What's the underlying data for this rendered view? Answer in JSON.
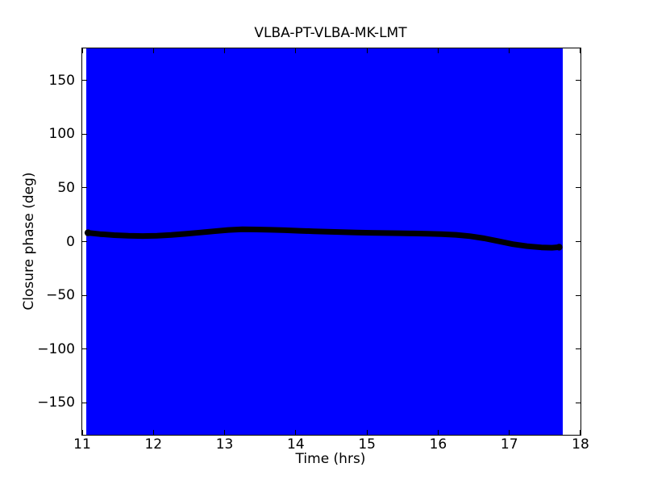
{
  "window": {
    "background_color": "#ffffff"
  },
  "chart_data": {
    "type": "line",
    "title": "VLBA-PT-VLBA-MK-LMT",
    "xlabel": "Time (hrs)",
    "ylabel": "Closure phase (deg)",
    "xlim": [
      11,
      18
    ],
    "ylim": [
      -180,
      180
    ],
    "xticks": [
      11,
      12,
      13,
      14,
      15,
      16,
      17,
      18
    ],
    "yticks": [
      -150,
      -100,
      -50,
      0,
      50,
      100,
      150
    ],
    "grid": false,
    "legend": "none",
    "tick_direction": "in",
    "axes_background": "#ffffff",
    "error_band": {
      "x_start": 11.06,
      "x_end": 17.75,
      "y_min": -180,
      "y_max": 180,
      "color": "#0000ff",
      "description": "error bars span the full y-axis range, merging into a solid blue region"
    },
    "series": [
      {
        "name": "closure phase",
        "color": "#000000",
        "marker": "circle",
        "marker_size": 7,
        "points": [
          [
            11.08,
            8.2
          ],
          [
            11.25,
            7.0
          ],
          [
            11.45,
            6.0
          ],
          [
            11.65,
            5.4
          ],
          [
            11.85,
            5.2
          ],
          [
            12.05,
            5.5
          ],
          [
            12.25,
            6.2
          ],
          [
            12.45,
            7.2
          ],
          [
            12.65,
            8.4
          ],
          [
            12.85,
            9.6
          ],
          [
            13.05,
            10.8
          ],
          [
            13.25,
            11.4
          ],
          [
            13.45,
            11.3
          ],
          [
            13.65,
            11.0
          ],
          [
            13.85,
            10.6
          ],
          [
            14.05,
            10.1
          ],
          [
            14.25,
            9.6
          ],
          [
            14.45,
            9.2
          ],
          [
            14.65,
            8.8
          ],
          [
            14.85,
            8.5
          ],
          [
            15.05,
            8.2
          ],
          [
            15.25,
            8.0
          ],
          [
            15.45,
            7.8
          ],
          [
            15.65,
            7.6
          ],
          [
            15.85,
            7.4
          ],
          [
            16.05,
            7.0
          ],
          [
            16.25,
            6.3
          ],
          [
            16.45,
            5.0
          ],
          [
            16.65,
            3.0
          ],
          [
            16.85,
            0.3
          ],
          [
            17.05,
            -2.4
          ],
          [
            17.25,
            -4.3
          ],
          [
            17.45,
            -5.4
          ],
          [
            17.6,
            -5.7
          ],
          [
            17.7,
            -5.2
          ]
        ]
      }
    ]
  }
}
